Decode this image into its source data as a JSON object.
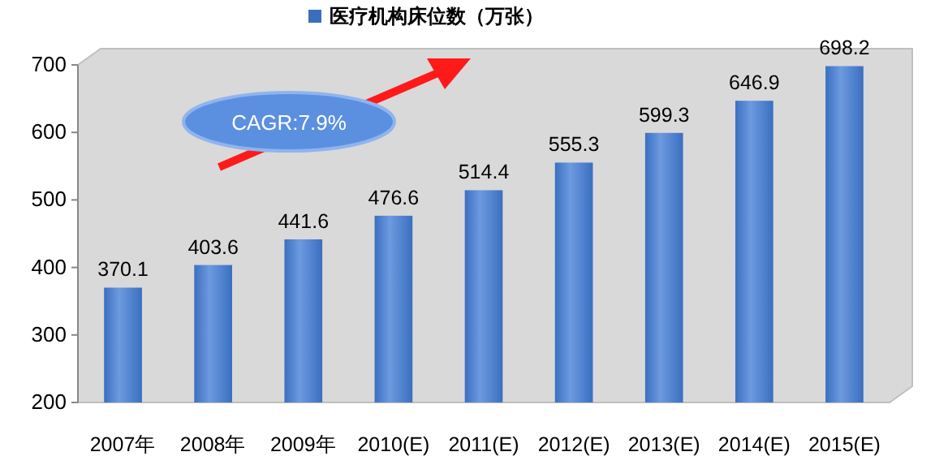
{
  "chart_data": {
    "type": "bar",
    "categories": [
      "2007年",
      "2008年",
      "2009年",
      "2010(E)",
      "2011(E)",
      "2012(E)",
      "2013(E)",
      "2014(E)",
      "2015(E)"
    ],
    "series": [
      {
        "name": "医疗机构床位数（万张）",
        "color": "#3a6fc0",
        "values": [
          370.1,
          403.6,
          441.6,
          476.6,
          514.4,
          555.3,
          599.3,
          646.9,
          698.2
        ]
      }
    ],
    "ylim": [
      200,
      700
    ],
    "yticks": [
      200,
      300,
      400,
      500,
      600,
      700
    ],
    "data_labels": true,
    "legend": "top",
    "grid": false,
    "annotations": [
      "CAGR:7.9%"
    ]
  }
}
